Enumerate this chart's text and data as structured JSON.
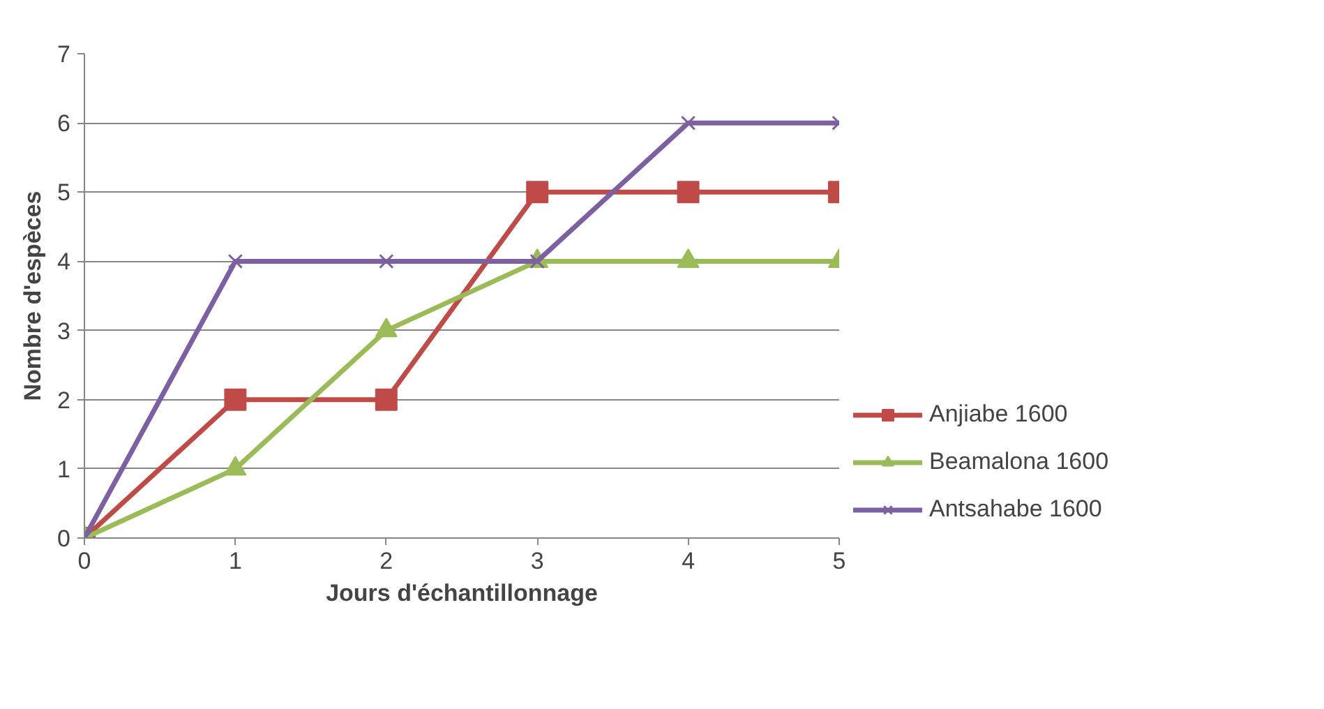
{
  "chart_data": {
    "type": "line",
    "xlabel": "Jours d'échantillonnage",
    "ylabel": "Nombre d'espèces",
    "x": [
      0,
      1,
      2,
      3,
      4,
      5
    ],
    "xlim": [
      0,
      5
    ],
    "xticks": [
      0,
      1,
      2,
      3,
      4,
      5
    ],
    "ylim": [
      0,
      7
    ],
    "yticks": [
      0,
      1,
      2,
      3,
      4,
      5,
      6,
      7
    ],
    "grid": "y",
    "legend": "bottom right",
    "line_style": "solid",
    "series": [
      {
        "name": "Anjiabe 1600",
        "color": "#be4b48",
        "marker": "square",
        "values": [
          0,
          2,
          2,
          5,
          5,
          5
        ]
      },
      {
        "name": "Beamalona 1600",
        "color": "#9bbb59",
        "marker": "triangle",
        "values": [
          0,
          1,
          3,
          4,
          4,
          4
        ]
      },
      {
        "name": "Antsahabe 1600",
        "color": "#7d60a0",
        "marker": "cross",
        "values": [
          0,
          4,
          4,
          4,
          6,
          6
        ]
      }
    ]
  }
}
